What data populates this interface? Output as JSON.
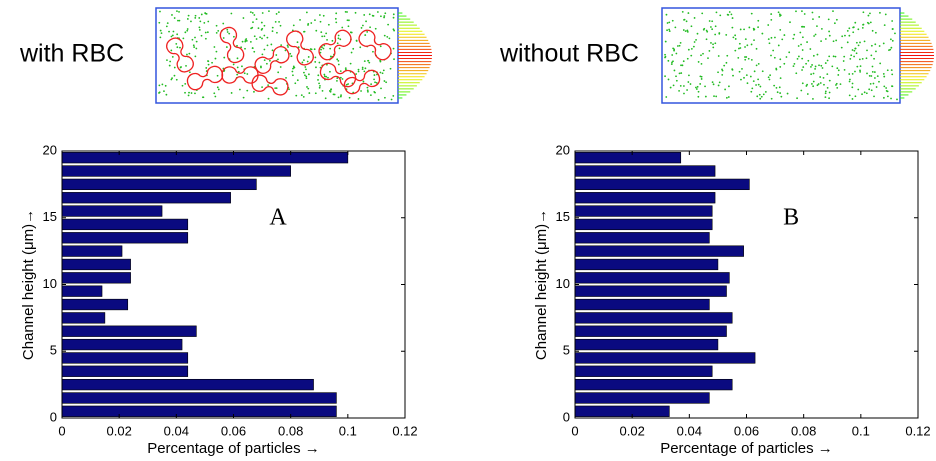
{
  "chart_data": [
    {
      "type": "barh",
      "inset_label": "with RBC",
      "annotation": "A",
      "xlabel": "Percentage of particles →",
      "ylabel": "Channel height (μm)→",
      "y": [
        0.5,
        1.5,
        2.5,
        3.5,
        4.5,
        5.5,
        6.5,
        7.5,
        8.5,
        9.5,
        10.5,
        11.5,
        12.5,
        13.5,
        14.5,
        15.5,
        16.5,
        17.5,
        18.5,
        19.5
      ],
      "values": [
        0.096,
        0.096,
        0.088,
        0.044,
        0.044,
        0.042,
        0.047,
        0.015,
        0.023,
        0.014,
        0.024,
        0.024,
        0.021,
        0.044,
        0.044,
        0.035,
        0.059,
        0.068,
        0.08,
        0.1
      ],
      "color": "#0a0a80",
      "xlim": [
        0,
        0.12
      ],
      "xticks": [
        0,
        0.02,
        0.04,
        0.06,
        0.08,
        0.1,
        0.12
      ],
      "ylim": [
        0,
        20
      ],
      "yticks": [
        0,
        5,
        10,
        15,
        20
      ]
    },
    {
      "type": "barh",
      "inset_label": "without RBC",
      "annotation": "B",
      "xlabel": "Percentage of particles →",
      "ylabel": "Channel height (μm)→",
      "y": [
        0.5,
        1.5,
        2.5,
        3.5,
        4.5,
        5.5,
        6.5,
        7.5,
        8.5,
        9.5,
        10.5,
        11.5,
        12.5,
        13.5,
        14.5,
        15.5,
        16.5,
        17.5,
        18.5,
        19.5
      ],
      "values": [
        0.033,
        0.047,
        0.055,
        0.048,
        0.063,
        0.05,
        0.053,
        0.055,
        0.047,
        0.053,
        0.054,
        0.05,
        0.059,
        0.047,
        0.048,
        0.048,
        0.049,
        0.061,
        0.049,
        0.037
      ],
      "color": "#0a0a80",
      "xlim": [
        0,
        0.12
      ],
      "xticks": [
        0,
        0.02,
        0.04,
        0.06,
        0.08,
        0.1,
        0.12
      ],
      "ylim": [
        0,
        20
      ],
      "yticks": [
        0,
        5,
        10,
        15,
        20
      ]
    }
  ]
}
